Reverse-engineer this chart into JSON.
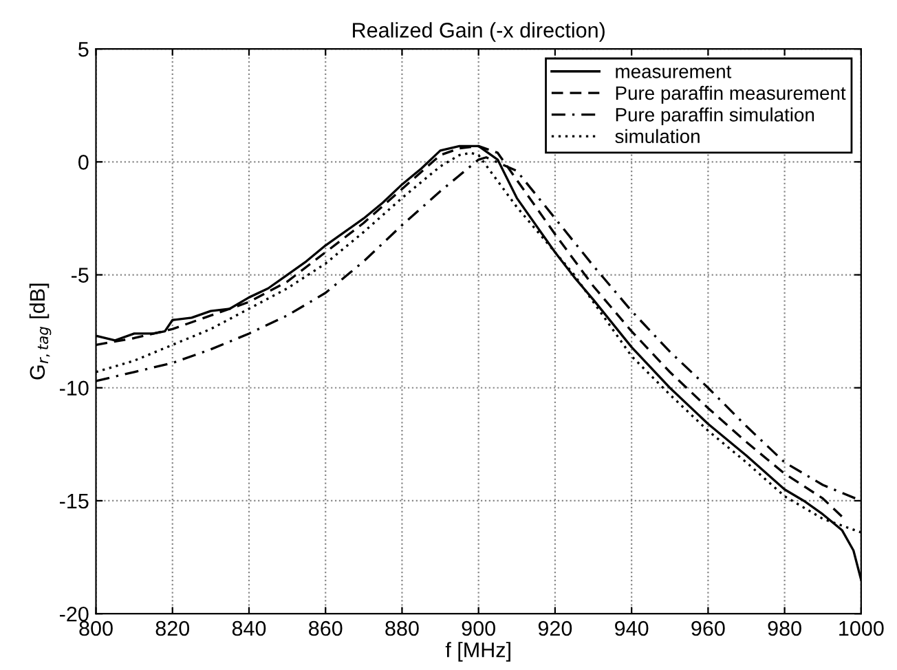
{
  "chart_data": {
    "type": "line",
    "title": "Realized Gain (-x direction)",
    "xlabel": "f [MHz]",
    "ylabel": "G$_{r,tag}$ [dB]",
    "xlim": [
      800,
      1000
    ],
    "xticks": [
      800,
      820,
      840,
      860,
      880,
      900,
      920,
      940,
      960,
      980,
      1000
    ],
    "ylim": [
      -20,
      5
    ],
    "yticks": [
      -20,
      -15,
      -10,
      -5,
      0,
      5
    ],
    "grid": true,
    "legend": "top right",
    "series": [
      {
        "name": "measurement",
        "color": "#000000",
        "line_style": "solid",
        "x": [
          800,
          805,
          810,
          815,
          818,
          820,
          825,
          830,
          835,
          840,
          845,
          850,
          855,
          860,
          865,
          870,
          875,
          880,
          885,
          890,
          895,
          900,
          905,
          910,
          920,
          925,
          930,
          940,
          950,
          960,
          970,
          980,
          985,
          990,
          995,
          998,
          1000
        ],
        "values": [
          -7.7,
          -7.9,
          -7.6,
          -7.6,
          -7.5,
          -7.0,
          -6.9,
          -6.6,
          -6.5,
          -6.0,
          -5.6,
          -5.0,
          -4.4,
          -3.7,
          -3.1,
          -2.5,
          -1.8,
          -1.0,
          -0.3,
          0.5,
          0.7,
          0.7,
          0.1,
          -1.6,
          -4.0,
          -5.1,
          -6.1,
          -8.2,
          -10.0,
          -11.6,
          -13.0,
          -14.5,
          -15.0,
          -15.6,
          -16.3,
          -17.2,
          -18.5
        ]
      },
      {
        "name": "Pure paraffin measurement",
        "color": "#000000",
        "line_style": "dashed",
        "x": [
          800,
          810,
          820,
          830,
          840,
          850,
          860,
          870,
          880,
          890,
          895,
          900,
          905,
          910,
          920,
          930,
          940,
          950,
          960,
          970,
          980,
          990,
          995
        ],
        "values": [
          -8.1,
          -7.8,
          -7.4,
          -6.8,
          -6.2,
          -5.3,
          -4.0,
          -2.7,
          -1.2,
          0.3,
          0.6,
          0.7,
          0.4,
          -0.8,
          -3.2,
          -5.5,
          -7.5,
          -9.3,
          -10.9,
          -12.4,
          -13.8,
          -14.9,
          -15.7
        ]
      },
      {
        "name": "Pure paraffin simulation",
        "color": "#000000",
        "line_style": "dashdot",
        "x": [
          800,
          810,
          820,
          830,
          840,
          850,
          860,
          870,
          880,
          890,
          900,
          902,
          910,
          920,
          930,
          940,
          950,
          960,
          970,
          980,
          990,
          1000
        ],
        "values": [
          -9.7,
          -9.3,
          -8.9,
          -8.3,
          -7.6,
          -6.8,
          -5.8,
          -4.4,
          -2.8,
          -1.3,
          0.1,
          0.2,
          -0.4,
          -2.5,
          -4.6,
          -6.6,
          -8.4,
          -10.0,
          -11.7,
          -13.3,
          -14.3,
          -15.0
        ]
      },
      {
        "name": "simulation",
        "color": "#000000",
        "line_style": "dotted",
        "x": [
          800,
          810,
          820,
          830,
          840,
          850,
          860,
          870,
          880,
          890,
          895,
          898,
          900,
          910,
          920,
          925,
          930,
          940,
          950,
          960,
          970,
          980,
          990,
          1000
        ],
        "values": [
          -9.3,
          -8.8,
          -8.1,
          -7.4,
          -6.5,
          -5.6,
          -4.5,
          -3.1,
          -1.6,
          -0.2,
          0.3,
          0.4,
          0.3,
          -2.0,
          -4.0,
          -5.0,
          -6.2,
          -8.6,
          -10.3,
          -11.9,
          -13.3,
          -14.8,
          -15.8,
          -16.4
        ]
      }
    ]
  }
}
